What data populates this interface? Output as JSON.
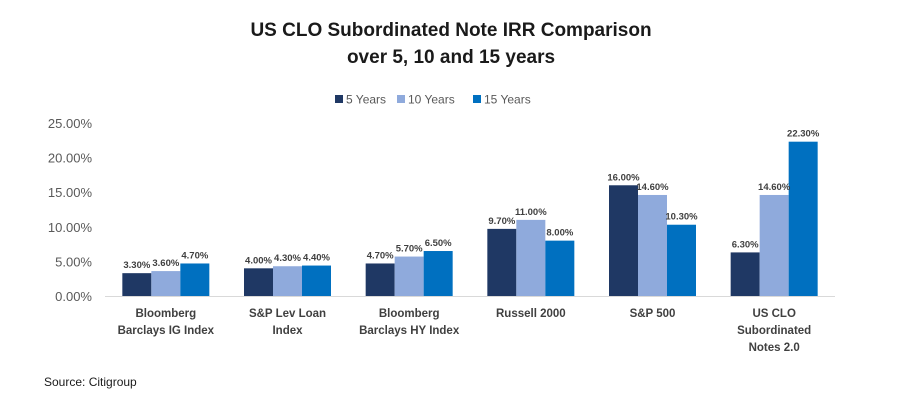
{
  "chart_data": {
    "type": "bar",
    "title": [
      "US CLO Subordinated Note IRR Comparison",
      "over 5, 10 and 15 years"
    ],
    "xlabel": "",
    "ylabel": "",
    "ylim": [
      0,
      25
    ],
    "yticks": [
      "0.00%",
      "5.00%",
      "10.00%",
      "15.00%",
      "20.00%",
      "25.00%"
    ],
    "ytick_values": [
      0,
      5,
      10,
      15,
      20,
      25
    ],
    "grid": false,
    "legend_position": "top-center",
    "categories": [
      [
        "Bloomberg",
        "Barclays IG Index"
      ],
      [
        "S&P Lev Loan",
        "Index"
      ],
      [
        "Bloomberg",
        "Barclays HY Index"
      ],
      [
        "Russell 2000"
      ],
      [
        "S&P 500"
      ],
      [
        "US CLO",
        "Subordinated",
        "Notes 2.0"
      ]
    ],
    "series": [
      {
        "name": "5 Years",
        "color": "#1f3864",
        "values": [
          3.3,
          4.0,
          4.7,
          9.7,
          16.0,
          6.3
        ],
        "labels": [
          "3.30%",
          "4.00%",
          "4.70%",
          "9.70%",
          "16.00%",
          "6.30%"
        ]
      },
      {
        "name": "10 Years",
        "color": "#8faadc",
        "values": [
          3.6,
          4.3,
          5.7,
          11.0,
          14.6,
          14.6
        ],
        "labels": [
          "3.60%",
          "4.30%",
          "5.70%",
          "11.00%",
          "14.60%",
          "14.60%"
        ]
      },
      {
        "name": "15 Years",
        "color": "#0070c0",
        "values": [
          4.7,
          4.4,
          6.5,
          8.0,
          10.3,
          22.3
        ],
        "labels": [
          "4.70%",
          "4.40%",
          "6.50%",
          "8.00%",
          "10.30%",
          "22.30%"
        ]
      }
    ]
  },
  "source": "Source: Citigroup"
}
